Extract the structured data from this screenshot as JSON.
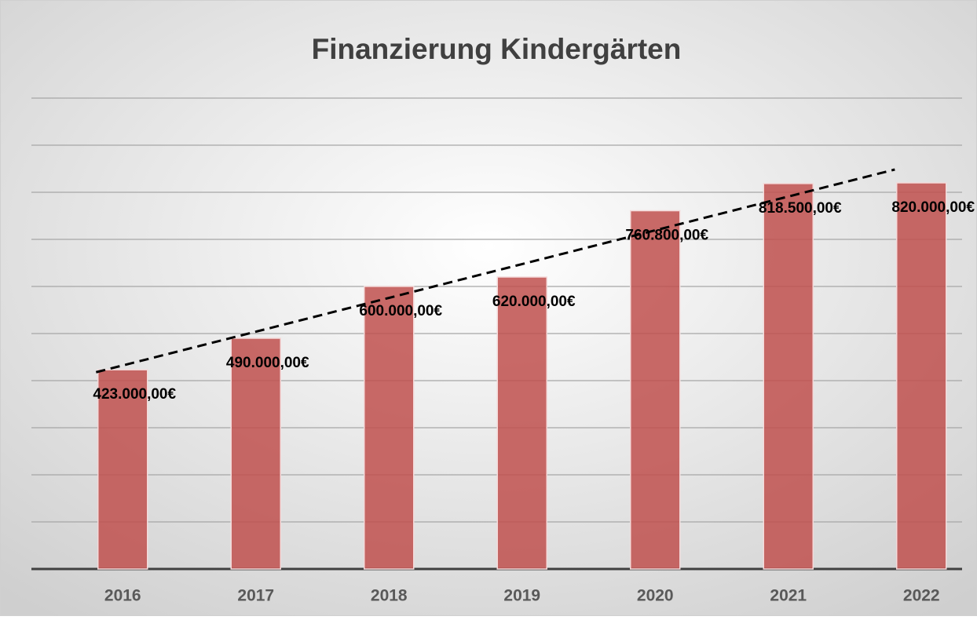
{
  "chart_data": {
    "type": "bar",
    "title": "Finanzierung Kindergärten",
    "categories": [
      "2016",
      "2017",
      "2018",
      "2019",
      "2020",
      "2021",
      "2022"
    ],
    "values": [
      423000,
      490000,
      600000,
      620000,
      760800,
      818500,
      820000
    ],
    "value_labels": [
      "423.000,00€",
      "490.000,00€",
      "600.000,00€",
      "620.000,00€",
      "760.800,00€",
      "818.500,00€",
      "820.000,00€"
    ],
    "color": "#c0504d",
    "ylim": [
      0,
      1000000
    ],
    "yticks": [
      0,
      100000,
      200000,
      300000,
      400000,
      500000,
      600000,
      700000,
      800000,
      900000,
      1000000
    ],
    "grid": true,
    "trendline": true
  }
}
